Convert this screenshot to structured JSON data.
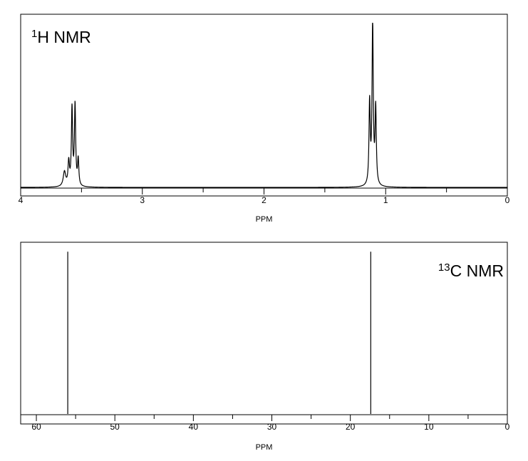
{
  "chart_data": [
    {
      "type": "line",
      "title_sup": "1",
      "title_main": "H NMR",
      "xlabel": "PPM",
      "xlim": [
        4,
        0
      ],
      "ylim": [
        0,
        1.0
      ],
      "x_ticks": [
        4,
        3,
        2,
        1,
        0
      ],
      "x_tick_labels": [
        "4",
        "3",
        "2",
        "1",
        "0"
      ],
      "x_minor_step": 0.5,
      "peaks": [
        {
          "x": 3.64,
          "y": 0.09,
          "w": 0.012
        },
        {
          "x": 3.605,
          "y": 0.145,
          "w": 0.007
        },
        {
          "x": 3.578,
          "y": 0.47,
          "w": 0.006
        },
        {
          "x": 3.553,
          "y": 0.49,
          "w": 0.006
        },
        {
          "x": 3.527,
          "y": 0.16,
          "w": 0.006
        },
        {
          "x": 1.132,
          "y": 0.5,
          "w": 0.006
        },
        {
          "x": 1.107,
          "y": 0.99,
          "w": 0.006
        },
        {
          "x": 1.082,
          "y": 0.465,
          "w": 0.006
        }
      ]
    },
    {
      "type": "bar",
      "title_sup": "13",
      "title_main": "C NMR",
      "xlabel": "PPM",
      "xlim": [
        62,
        0
      ],
      "ylim": [
        0,
        1.0
      ],
      "x_ticks": [
        60,
        50,
        40,
        30,
        20,
        10,
        0
      ],
      "x_tick_labels": [
        "60",
        "50",
        "40",
        "30",
        "20",
        "10",
        "0"
      ],
      "x_minor_step": 5,
      "peaks": [
        {
          "x": 56.0,
          "y": 0.99
        },
        {
          "x": 17.4,
          "y": 0.99
        }
      ]
    }
  ]
}
